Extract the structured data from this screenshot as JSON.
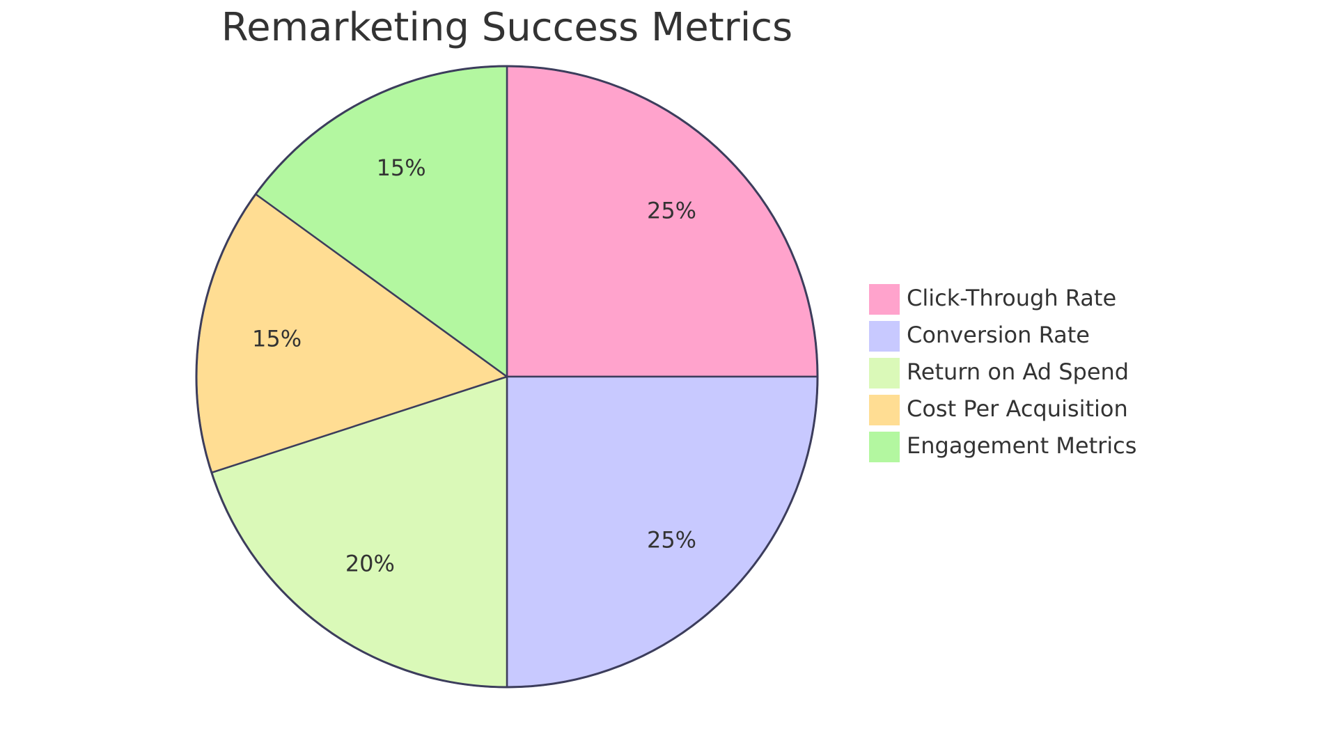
{
  "chart_data": {
    "type": "pie",
    "title": "Remarketing Success Metrics",
    "slices": [
      {
        "label": "Click-Through Rate",
        "value": 25,
        "value_label": "25%",
        "color": "#FFA3CC"
      },
      {
        "label": "Conversion Rate",
        "value": 25,
        "value_label": "25%",
        "color": "#C8C9FF"
      },
      {
        "label": "Return on Ad Spend",
        "value": 20,
        "value_label": "20%",
        "color": "#DAF9B8"
      },
      {
        "label": "Cost Per Acquisition",
        "value": 15,
        "value_label": "15%",
        "color": "#FFDD93"
      },
      {
        "label": "Engagement Metrics",
        "value": 15,
        "value_label": "15%",
        "color": "#B3F7A0"
      }
    ],
    "legend_position": "right",
    "start_angle": "top",
    "direction": "clockwise",
    "outline_color": "#3C3D5C"
  }
}
